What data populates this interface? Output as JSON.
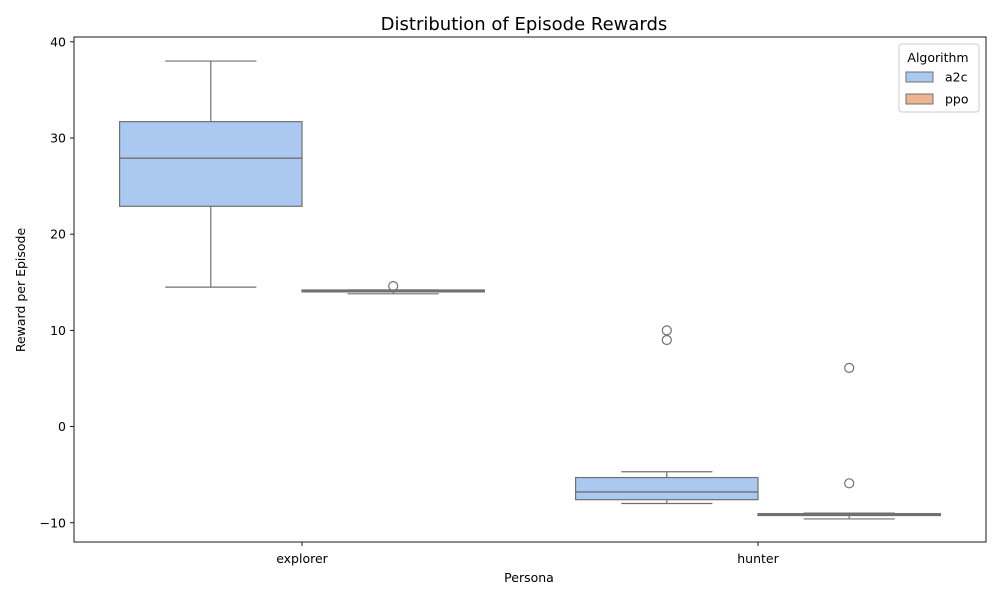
{
  "chart_data": {
    "type": "boxplot",
    "title": "Distribution of Episode Rewards",
    "xlabel": "Persona",
    "ylabel": "Reward per Episode",
    "categories": [
      "explorer",
      "hunter"
    ],
    "ylim": [
      -12,
      40.5
    ],
    "yticks": [
      -10,
      0,
      10,
      20,
      30,
      40
    ],
    "ytick_labels": [
      "−10",
      "0",
      "10",
      "20",
      "30",
      "40"
    ],
    "grid": false,
    "legend": {
      "title": "Algorithm",
      "position": "top-right"
    },
    "series": [
      {
        "name": "a2c",
        "color": "#abc9f0",
        "boxes": [
          {
            "category": "explorer",
            "whisker_low": 14.5,
            "q1": 22.9,
            "median": 27.9,
            "q3": 31.7,
            "whisker_high": 38.0,
            "outliers": []
          },
          {
            "category": "hunter",
            "whisker_low": -8.0,
            "q1": -7.6,
            "median": -6.8,
            "q3": -5.3,
            "whisker_high": -4.7,
            "outliers": [
              9.0,
              10.0
            ]
          }
        ]
      },
      {
        "name": "ppo",
        "color": "#f0b58f",
        "boxes": [
          {
            "category": "explorer",
            "whisker_low": 13.8,
            "q1": 14.0,
            "median": 14.1,
            "q3": 14.2,
            "whisker_high": 14.2,
            "outliers": [
              14.6
            ]
          },
          {
            "category": "hunter",
            "whisker_low": -9.6,
            "q1": -9.25,
            "median": -9.15,
            "q3": -9.05,
            "whisker_high": -9.0,
            "outliers": [
              6.1,
              -5.9
            ]
          }
        ]
      }
    ]
  }
}
